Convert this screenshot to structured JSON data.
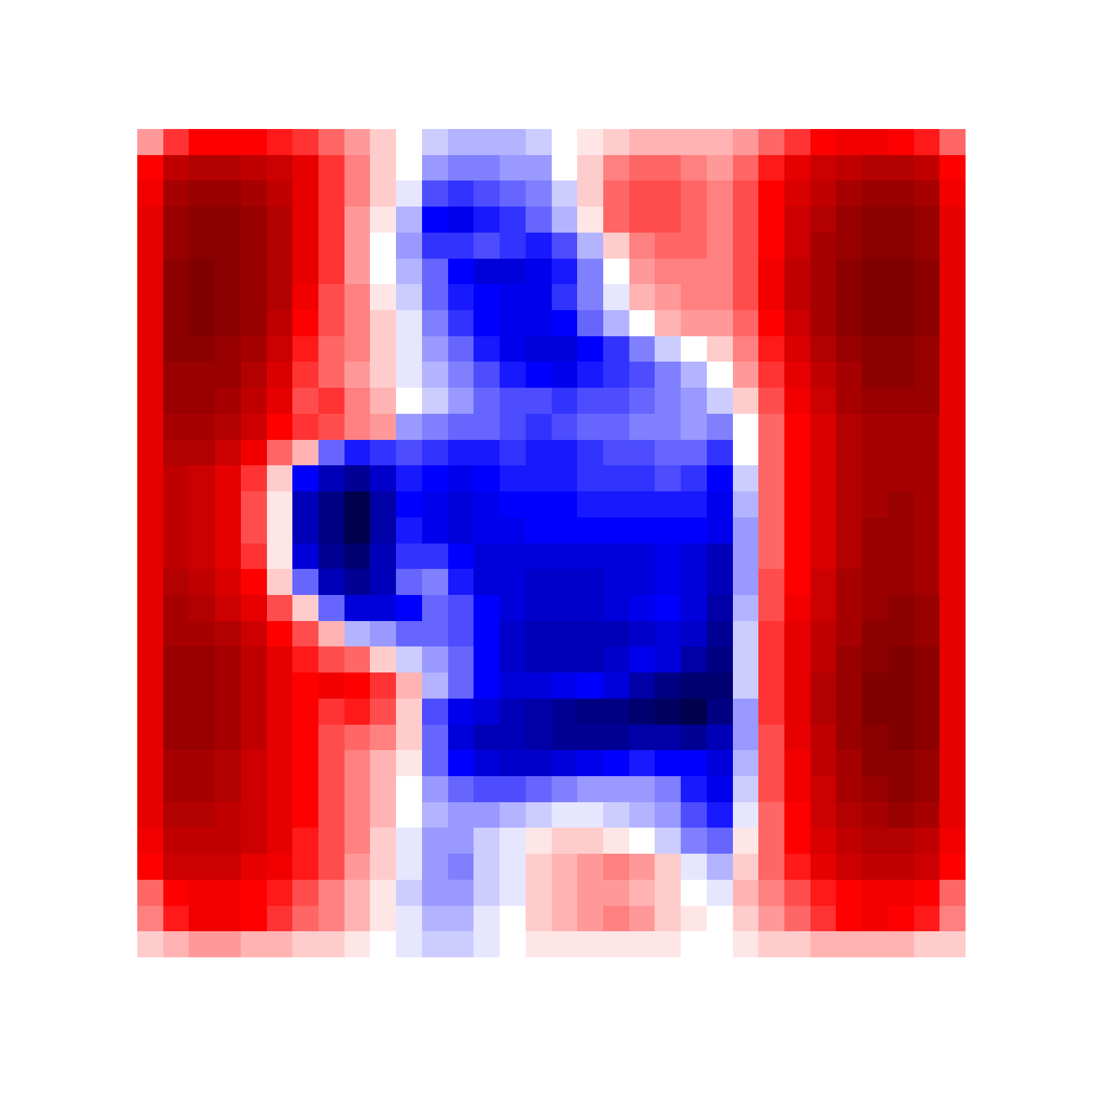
{
  "chart_data": {
    "type": "heatmap",
    "tick_labels": false,
    "grid": false,
    "zlim": [
      -1,
      1
    ],
    "cells": [
      [
        0.2,
        0.4,
        0.5,
        0.5,
        0.5,
        0.45,
        0.4,
        0.3,
        0.2,
        0.1,
        0.0,
        -0.1,
        -0.15,
        -0.15,
        -0.15,
        -0.1,
        0.0,
        0.05,
        0.1,
        0.15,
        0.15,
        0.15,
        0.15,
        0.2,
        0.3,
        0.4,
        0.5,
        0.55,
        0.55,
        0.5,
        0.45,
        0.3
      ],
      [
        0.5,
        0.75,
        0.8,
        0.8,
        0.75,
        0.7,
        0.6,
        0.4,
        0.25,
        0.1,
        0.0,
        -0.2,
        -0.25,
        -0.25,
        -0.2,
        -0.2,
        0.0,
        0.1,
        0.25,
        0.3,
        0.3,
        0.25,
        0.2,
        0.3,
        0.45,
        0.6,
        0.7,
        0.75,
        0.8,
        0.8,
        0.75,
        0.5
      ],
      [
        0.55,
        0.85,
        0.9,
        0.9,
        0.85,
        0.75,
        0.6,
        0.4,
        0.25,
        0.1,
        -0.05,
        -0.35,
        -0.4,
        -0.35,
        -0.3,
        -0.25,
        -0.1,
        0.1,
        0.3,
        0.35,
        0.35,
        0.3,
        0.25,
        0.35,
        0.5,
        0.65,
        0.75,
        0.85,
        0.9,
        0.9,
        0.85,
        0.55
      ],
      [
        0.6,
        0.9,
        0.95,
        0.95,
        0.9,
        0.8,
        0.6,
        0.4,
        0.2,
        0.05,
        -0.15,
        -0.5,
        -0.55,
        -0.45,
        -0.4,
        -0.3,
        -0.15,
        0.05,
        0.3,
        0.35,
        0.35,
        0.3,
        0.25,
        0.35,
        0.5,
        0.7,
        0.8,
        0.9,
        0.95,
        0.95,
        0.9,
        0.6
      ],
      [
        0.6,
        0.9,
        0.95,
        0.95,
        0.9,
        0.8,
        0.6,
        0.4,
        0.2,
        0.0,
        -0.2,
        -0.4,
        -0.4,
        -0.35,
        -0.4,
        -0.45,
        -0.35,
        -0.15,
        0.1,
        0.25,
        0.3,
        0.3,
        0.25,
        0.35,
        0.5,
        0.7,
        0.85,
        0.9,
        0.95,
        0.95,
        0.9,
        0.6
      ],
      [
        0.6,
        0.95,
        1.0,
        0.95,
        0.9,
        0.8,
        0.6,
        0.4,
        0.2,
        0.0,
        -0.15,
        -0.3,
        -0.5,
        -0.6,
        -0.6,
        -0.55,
        -0.45,
        -0.25,
        0.0,
        0.2,
        0.25,
        0.25,
        0.25,
        0.35,
        0.55,
        0.75,
        0.85,
        0.95,
        1.0,
        1.0,
        0.95,
        0.6
      ],
      [
        0.6,
        0.95,
        1.0,
        0.95,
        0.9,
        0.8,
        0.55,
        0.35,
        0.25,
        0.05,
        -0.1,
        -0.3,
        -0.45,
        -0.5,
        -0.55,
        -0.55,
        -0.4,
        -0.25,
        -0.05,
        0.15,
        0.2,
        0.25,
        0.25,
        0.35,
        0.55,
        0.75,
        0.85,
        0.95,
        1.0,
        1.0,
        0.95,
        0.6
      ],
      [
        0.6,
        0.95,
        1.0,
        0.95,
        0.9,
        0.75,
        0.5,
        0.35,
        0.25,
        0.1,
        -0.05,
        -0.25,
        -0.4,
        -0.5,
        -0.55,
        -0.55,
        -0.5,
        -0.3,
        -0.15,
        0.0,
        0.15,
        0.2,
        0.2,
        0.3,
        0.5,
        0.7,
        0.85,
        0.95,
        1.0,
        1.0,
        0.95,
        0.6
      ],
      [
        0.6,
        0.95,
        0.95,
        0.9,
        0.85,
        0.7,
        0.45,
        0.3,
        0.25,
        0.1,
        -0.05,
        -0.2,
        -0.3,
        -0.45,
        -0.55,
        -0.6,
        -0.6,
        -0.5,
        -0.4,
        -0.25,
        -0.1,
        0.0,
        0.1,
        0.25,
        0.45,
        0.65,
        0.8,
        0.9,
        0.95,
        0.95,
        0.9,
        0.6
      ],
      [
        0.6,
        0.9,
        0.9,
        0.9,
        0.8,
        0.65,
        0.4,
        0.3,
        0.2,
        0.1,
        -0.05,
        -0.15,
        -0.25,
        -0.35,
        -0.45,
        -0.5,
        -0.55,
        -0.45,
        -0.4,
        -0.35,
        -0.25,
        -0.15,
        0.0,
        0.2,
        0.4,
        0.6,
        0.75,
        0.85,
        0.95,
        0.95,
        0.9,
        0.6
      ],
      [
        0.6,
        0.9,
        0.9,
        0.85,
        0.75,
        0.6,
        0.35,
        0.4,
        0.25,
        0.15,
        0.0,
        -0.1,
        -0.2,
        -0.3,
        -0.35,
        -0.35,
        -0.4,
        -0.35,
        -0.35,
        -0.3,
        -0.25,
        -0.2,
        -0.1,
        0.1,
        0.35,
        0.55,
        0.7,
        0.85,
        0.9,
        0.9,
        0.9,
        0.6
      ],
      [
        0.6,
        0.85,
        0.85,
        0.8,
        0.7,
        0.5,
        0.4,
        0.35,
        0.25,
        0.2,
        -0.2,
        -0.25,
        -0.3,
        -0.3,
        -0.35,
        -0.4,
        -0.35,
        -0.3,
        -0.3,
        -0.25,
        -0.25,
        -0.2,
        -0.25,
        0.0,
        0.3,
        0.5,
        0.65,
        0.8,
        0.85,
        0.85,
        0.85,
        0.6
      ],
      [
        0.6,
        0.8,
        0.8,
        0.7,
        0.55,
        0.3,
        0.15,
        -0.3,
        -0.45,
        -0.4,
        -0.35,
        -0.4,
        -0.45,
        -0.45,
        -0.4,
        -0.45,
        -0.45,
        -0.4,
        -0.35,
        -0.35,
        -0.3,
        -0.3,
        -0.4,
        0.0,
        0.3,
        0.5,
        0.65,
        0.8,
        0.85,
        0.85,
        0.85,
        0.6
      ],
      [
        0.6,
        0.75,
        0.7,
        0.6,
        0.4,
        0.1,
        -0.5,
        -0.7,
        -0.8,
        -0.65,
        -0.45,
        -0.5,
        -0.55,
        -0.5,
        -0.45,
        -0.45,
        -0.45,
        -0.4,
        -0.4,
        -0.4,
        -0.35,
        -0.4,
        -0.5,
        -0.1,
        0.3,
        0.5,
        0.65,
        0.8,
        0.85,
        0.85,
        0.85,
        0.6
      ],
      [
        0.6,
        0.75,
        0.7,
        0.6,
        0.35,
        0.05,
        -0.7,
        -0.85,
        -1.0,
        -0.75,
        -0.5,
        -0.55,
        -0.6,
        -0.55,
        -0.5,
        -0.5,
        -0.5,
        -0.45,
        -0.45,
        -0.45,
        -0.45,
        -0.45,
        -0.55,
        -0.15,
        0.3,
        0.5,
        0.65,
        0.8,
        0.85,
        0.9,
        0.85,
        0.6
      ],
      [
        0.6,
        0.75,
        0.7,
        0.6,
        0.35,
        0.05,
        -0.7,
        -0.85,
        -1.0,
        -0.75,
        -0.45,
        -0.55,
        -0.6,
        -0.55,
        -0.55,
        -0.5,
        -0.5,
        -0.5,
        -0.5,
        -0.5,
        -0.5,
        -0.5,
        -0.55,
        -0.2,
        0.3,
        0.5,
        0.65,
        0.8,
        0.9,
        0.9,
        0.85,
        0.6
      ],
      [
        0.6,
        0.75,
        0.7,
        0.6,
        0.4,
        0.05,
        -0.6,
        -0.8,
        -0.9,
        -0.7,
        -0.4,
        -0.4,
        -0.5,
        -0.6,
        -0.6,
        -0.6,
        -0.6,
        -0.6,
        -0.6,
        -0.6,
        -0.55,
        -0.6,
        -0.7,
        -0.2,
        0.3,
        0.5,
        0.65,
        0.8,
        0.9,
        0.9,
        0.85,
        0.6
      ],
      [
        0.6,
        0.8,
        0.75,
        0.65,
        0.5,
        0.1,
        -0.3,
        -0.7,
        -0.8,
        -0.7,
        -0.3,
        -0.25,
        -0.45,
        -0.6,
        -0.6,
        -0.65,
        -0.65,
        -0.65,
        -0.6,
        -0.6,
        -0.55,
        -0.6,
        -0.7,
        -0.2,
        0.35,
        0.5,
        0.7,
        0.85,
        0.9,
        0.9,
        0.85,
        0.6
      ],
      [
        0.6,
        0.85,
        0.8,
        0.7,
        0.6,
        0.35,
        0.1,
        -0.3,
        -0.6,
        -0.6,
        -0.5,
        -0.3,
        -0.35,
        -0.5,
        -0.6,
        -0.65,
        -0.65,
        -0.65,
        -0.6,
        -0.55,
        -0.5,
        -0.6,
        -0.75,
        -0.15,
        0.35,
        0.55,
        0.7,
        0.85,
        0.9,
        0.95,
        0.9,
        0.6
      ],
      [
        0.6,
        0.85,
        0.85,
        0.8,
        0.7,
        0.5,
        0.35,
        0.15,
        -0.15,
        -0.2,
        -0.3,
        -0.3,
        -0.35,
        -0.5,
        -0.65,
        -0.7,
        -0.7,
        -0.7,
        -0.7,
        -0.65,
        -0.6,
        -0.65,
        -0.8,
        -0.1,
        0.4,
        0.6,
        0.75,
        0.85,
        0.95,
        0.95,
        0.9,
        0.6
      ],
      [
        0.6,
        0.9,
        0.9,
        0.85,
        0.75,
        0.6,
        0.45,
        0.35,
        0.3,
        0.1,
        -0.1,
        -0.2,
        -0.3,
        -0.5,
        -0.65,
        -0.7,
        -0.7,
        -0.7,
        -0.65,
        -0.55,
        -0.6,
        -0.75,
        -0.85,
        -0.1,
        0.4,
        0.6,
        0.75,
        0.9,
        0.95,
        1.0,
        0.95,
        0.6
      ],
      [
        0.6,
        0.9,
        0.9,
        0.85,
        0.75,
        0.6,
        0.5,
        0.55,
        0.5,
        0.4,
        0.15,
        -0.15,
        -0.3,
        -0.5,
        -0.6,
        -0.6,
        -0.55,
        -0.5,
        -0.6,
        -0.75,
        -0.85,
        -0.9,
        -0.9,
        -0.1,
        0.4,
        0.6,
        0.8,
        0.9,
        1.0,
        1.0,
        0.95,
        0.6
      ],
      [
        0.6,
        0.9,
        0.9,
        0.85,
        0.75,
        0.6,
        0.5,
        0.4,
        0.45,
        0.35,
        0.1,
        -0.35,
        -0.55,
        -0.6,
        -0.7,
        -0.75,
        -0.8,
        -0.85,
        -0.85,
        -0.9,
        -0.95,
        -1.0,
        -0.85,
        -0.2,
        0.4,
        0.6,
        0.8,
        0.9,
        1.0,
        1.0,
        0.95,
        0.6
      ],
      [
        0.6,
        0.9,
        0.9,
        0.85,
        0.75,
        0.6,
        0.5,
        0.35,
        0.3,
        0.25,
        0.1,
        -0.3,
        -0.6,
        -0.7,
        -0.7,
        -0.75,
        -0.8,
        -0.8,
        -0.8,
        -0.75,
        -0.75,
        -0.8,
        -0.7,
        -0.2,
        0.35,
        0.6,
        0.75,
        0.9,
        0.95,
        1.0,
        0.95,
        0.6
      ],
      [
        0.6,
        0.85,
        0.85,
        0.8,
        0.7,
        0.6,
        0.5,
        0.35,
        0.25,
        0.15,
        0.05,
        -0.3,
        -0.5,
        -0.6,
        -0.65,
        -0.65,
        -0.6,
        -0.55,
        -0.5,
        -0.45,
        -0.5,
        -0.5,
        -0.6,
        -0.15,
        0.35,
        0.55,
        0.75,
        0.85,
        0.95,
        0.95,
        0.9,
        0.6
      ],
      [
        0.6,
        0.85,
        0.85,
        0.8,
        0.7,
        0.6,
        0.5,
        0.35,
        0.25,
        0.15,
        0.0,
        -0.2,
        -0.3,
        -0.35,
        -0.35,
        -0.3,
        -0.25,
        -0.2,
        -0.2,
        -0.2,
        -0.25,
        -0.45,
        -0.55,
        -0.1,
        0.35,
        0.55,
        0.7,
        0.85,
        0.9,
        0.95,
        0.9,
        0.6
      ],
      [
        0.6,
        0.8,
        0.8,
        0.75,
        0.7,
        0.6,
        0.5,
        0.35,
        0.25,
        0.15,
        0.0,
        -0.15,
        -0.2,
        -0.2,
        -0.15,
        -0.1,
        -0.05,
        -0.05,
        -0.1,
        -0.15,
        -0.2,
        -0.35,
        -0.45,
        -0.05,
        0.3,
        0.5,
        0.7,
        0.8,
        0.85,
        0.9,
        0.85,
        0.6
      ],
      [
        0.55,
        0.75,
        0.75,
        0.75,
        0.7,
        0.6,
        0.45,
        0.35,
        0.25,
        0.1,
        -0.05,
        -0.2,
        -0.2,
        -0.1,
        -0.05,
        0.05,
        0.1,
        0.1,
        0.05,
        0.0,
        -0.1,
        -0.25,
        -0.3,
        0.05,
        0.3,
        0.5,
        0.65,
        0.75,
        0.8,
        0.8,
        0.75,
        0.55
      ],
      [
        0.5,
        0.7,
        0.7,
        0.7,
        0.6,
        0.55,
        0.45,
        0.35,
        0.2,
        0.1,
        -0.05,
        -0.2,
        -0.25,
        -0.1,
        -0.05,
        0.1,
        0.15,
        0.2,
        0.25,
        0.2,
        0.1,
        -0.05,
        -0.15,
        0.1,
        0.3,
        0.45,
        0.6,
        0.7,
        0.75,
        0.75,
        0.7,
        0.5
      ],
      [
        0.3,
        0.5,
        0.55,
        0.55,
        0.5,
        0.45,
        0.35,
        0.25,
        0.15,
        0.05,
        -0.1,
        -0.2,
        -0.2,
        -0.1,
        -0.05,
        0.1,
        0.15,
        0.2,
        0.2,
        0.15,
        0.1,
        0.0,
        -0.05,
        0.15,
        0.25,
        0.35,
        0.45,
        0.5,
        0.55,
        0.55,
        0.5,
        0.3
      ],
      [
        0.25,
        0.45,
        0.55,
        0.55,
        0.5,
        0.4,
        0.3,
        0.25,
        0.15,
        0.05,
        -0.05,
        -0.15,
        -0.15,
        -0.05,
        0.0,
        0.1,
        0.15,
        0.2,
        0.25,
        0.2,
        0.1,
        0.05,
        0.0,
        0.1,
        0.2,
        0.3,
        0.4,
        0.5,
        0.55,
        0.5,
        0.45,
        0.25
      ],
      [
        0.1,
        0.15,
        0.2,
        0.2,
        0.15,
        0.15,
        0.1,
        0.1,
        0.05,
        0.0,
        -0.05,
        -0.1,
        -0.1,
        -0.05,
        0.0,
        0.05,
        0.05,
        0.05,
        0.05,
        0.05,
        0.05,
        0.0,
        0.0,
        0.05,
        0.1,
        0.1,
        0.15,
        0.15,
        0.15,
        0.15,
        0.1,
        0.1
      ]
    ]
  }
}
